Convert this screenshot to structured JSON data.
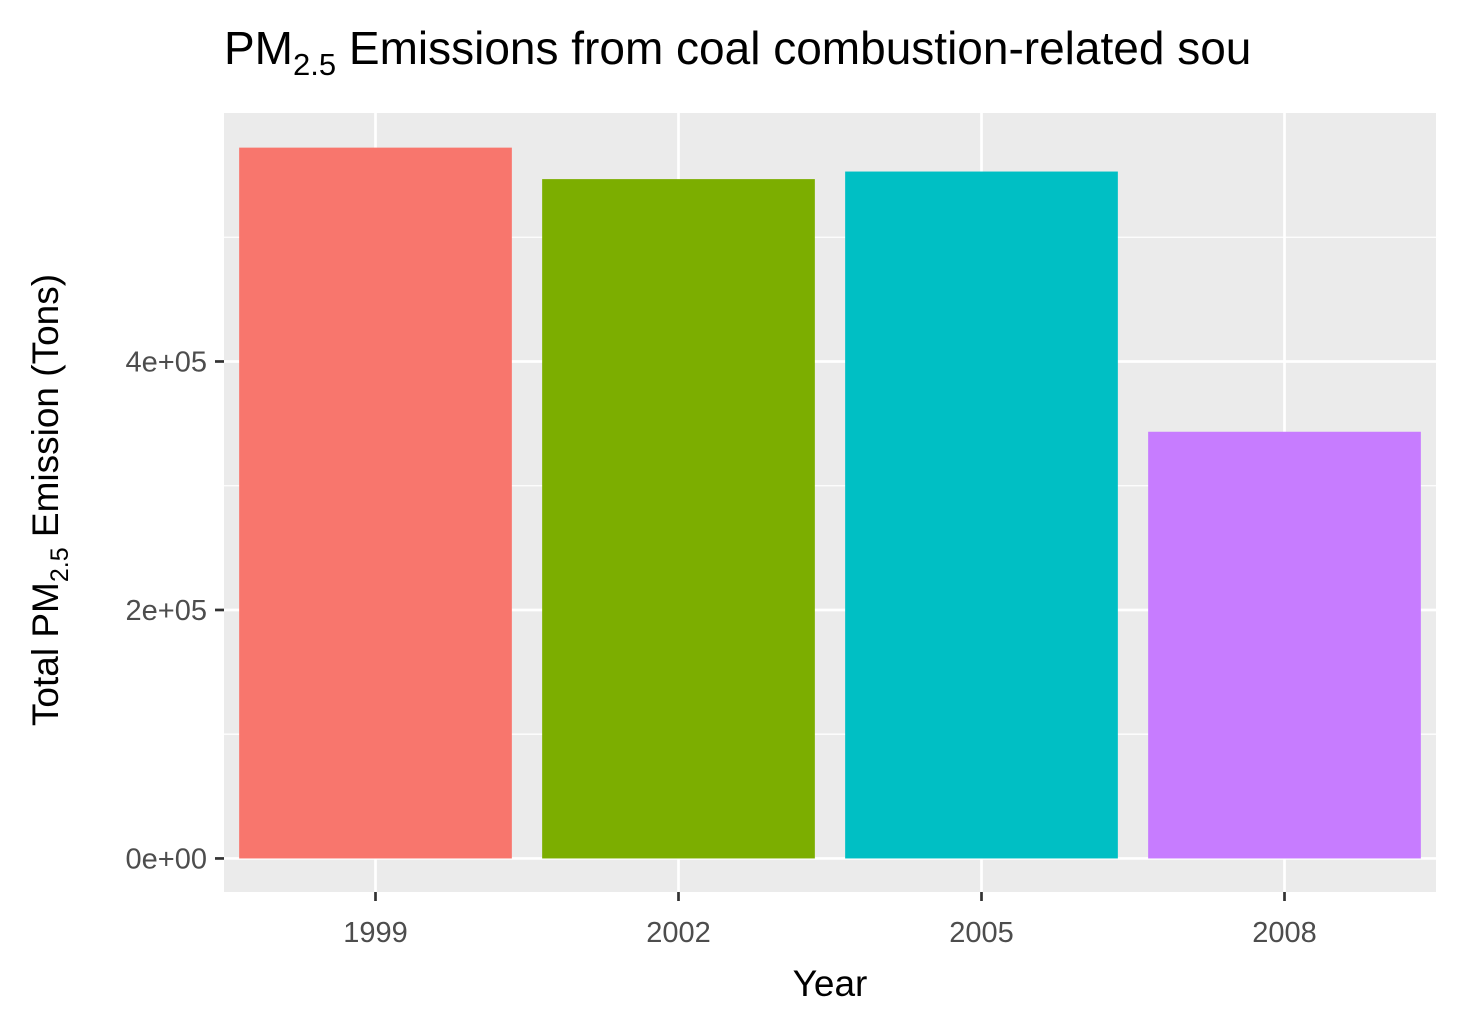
{
  "chart_data": {
    "type": "bar",
    "title": {
      "prefix": "PM",
      "subscript": "2.5",
      "suffix": " Emissions from coal combustion-related sou"
    },
    "xlabel": "Year",
    "ylabel": {
      "prefix": "Total PM",
      "subscript": "2.5",
      "suffix": " Emission (Tons)"
    },
    "categories": [
      "1999",
      "2002",
      "2005",
      "2008"
    ],
    "values": [
      572126,
      546789,
      552881,
      343432
    ],
    "colors": [
      "#F8766D",
      "#7CAE00",
      "#00BFC4",
      "#C77CFF"
    ],
    "ylim": [
      -27000,
      600000
    ],
    "yticks": [
      {
        "value": 0,
        "label": "0e+00"
      },
      {
        "value": 200000,
        "label": "2e+05"
      },
      {
        "value": 400000,
        "label": "4e+05"
      }
    ],
    "yminor": [
      100000,
      300000,
      500000
    ],
    "panel_background": "#EBEBEB",
    "grid": true,
    "legend": "none"
  }
}
